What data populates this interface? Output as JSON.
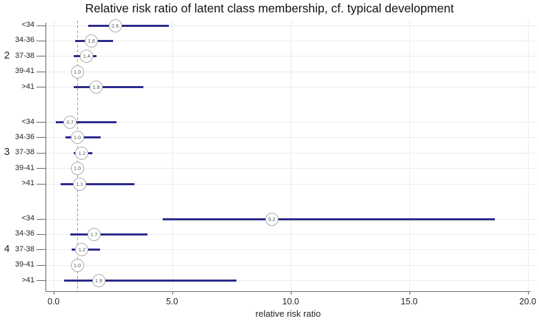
{
  "chart_data": {
    "type": "forest",
    "title": "Relative risk ratio of latent class membership, cf. typical development",
    "xlabel": "relative risk ratio",
    "xlim": [
      0,
      20
    ],
    "x_ticks": [
      0,
      5,
      10,
      15,
      20
    ],
    "x_tick_labels": [
      "0.0",
      "5.0",
      "10.0",
      "15.0",
      "20.0"
    ],
    "reference_line": 1.0,
    "grid": true,
    "legend": "none",
    "colors": {
      "ci_line": "#29298a",
      "circle_fill": "#ffffff",
      "circle_border": "#aaaaaa",
      "reference_line": "#999999",
      "grid_line": "#ececec",
      "axis": "#666666",
      "text": "#222222"
    },
    "groups": [
      {
        "label": "2",
        "rows": [
          {
            "label": "<34",
            "rr": 2.6,
            "rr_label": "2.6",
            "ci": [
              1.45,
              4.85
            ]
          },
          {
            "label": "34-36",
            "rr": 1.6,
            "rr_label": "1.6",
            "ci": [
              0.9,
              2.5
            ]
          },
          {
            "label": "37-38",
            "rr": 1.4,
            "rr_label": "1.4",
            "ci": [
              0.85,
              1.8
            ]
          },
          {
            "label": "39-41",
            "rr": 1.0,
            "rr_label": "1.0",
            "ci": null
          },
          {
            "label": ">41",
            "rr": 1.8,
            "rr_label": "1.8",
            "ci": [
              0.85,
              3.8
            ]
          }
        ]
      },
      {
        "label": "3",
        "rows": [
          {
            "label": "<34",
            "rr": 0.7,
            "rr_label": "0.7",
            "ci": [
              0.1,
              2.65
            ]
          },
          {
            "label": "34-36",
            "rr": 1.0,
            "rr_label": "1.0",
            "ci": [
              0.5,
              2.0
            ]
          },
          {
            "label": "37-38",
            "rr": 1.2,
            "rr_label": "1.2",
            "ci": [
              0.85,
              1.65
            ]
          },
          {
            "label": "39-41",
            "rr": 1.0,
            "rr_label": "1.0",
            "ci": null
          },
          {
            "label": ">41",
            "rr": 1.1,
            "rr_label": "1.1",
            "ci": [
              0.3,
              3.4
            ]
          }
        ]
      },
      {
        "label": "4",
        "rows": [
          {
            "label": "<34",
            "rr": 9.2,
            "rr_label": "9.2",
            "ci": [
              4.6,
              18.6
            ]
          },
          {
            "label": "34-36",
            "rr": 1.7,
            "rr_label": "1.7",
            "ci": [
              0.7,
              3.95
            ]
          },
          {
            "label": "37-38",
            "rr": 1.2,
            "rr_label": "1.2",
            "ci": [
              0.75,
              1.95
            ]
          },
          {
            "label": "39-41",
            "rr": 1.0,
            "rr_label": "1.0",
            "ci": null
          },
          {
            "label": ">41",
            "rr": 1.9,
            "rr_label": "1.9",
            "ci": [
              0.45,
              7.7
            ]
          }
        ]
      }
    ]
  }
}
